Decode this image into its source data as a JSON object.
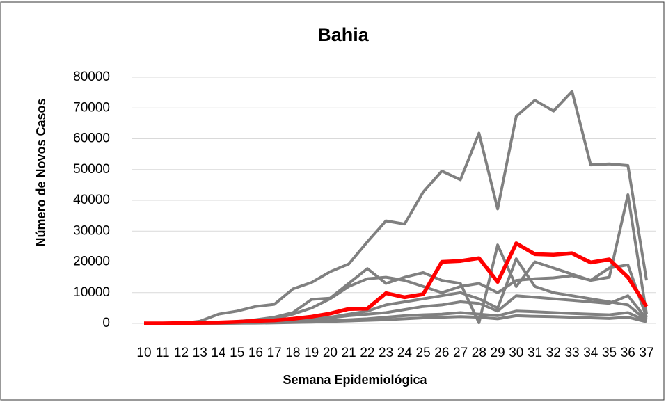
{
  "chart_data": {
    "type": "line",
    "title": "Bahia",
    "xlabel": "Semana Epidemiológica",
    "ylabel": "Número de Novos Casos",
    "categories": [
      "10",
      "11",
      "12",
      "13",
      "14",
      "15",
      "16",
      "17",
      "18",
      "19",
      "20",
      "21",
      "22",
      "23",
      "24",
      "25",
      "26",
      "27",
      "28",
      "29",
      "30",
      "31",
      "32",
      "33",
      "34",
      "35",
      "36",
      "37"
    ],
    "ylim": [
      0,
      80000
    ],
    "yticks": [
      0,
      10000,
      20000,
      30000,
      40000,
      50000,
      60000,
      70000,
      80000
    ],
    "grid": true,
    "series": [
      {
        "color": "#808080",
        "values": [
          0,
          0,
          0,
          700,
          3000,
          4000,
          5500,
          6200,
          11200,
          13300,
          16800,
          19300,
          26500,
          33300,
          32300,
          42700,
          49500,
          46700,
          61800,
          37200,
          67300,
          72500,
          69000,
          75400,
          51500,
          51800,
          51300,
          14000
        ]
      },
      {
        "color": "#808080",
        "values": [
          0,
          0,
          0,
          100,
          200,
          400,
          800,
          1500,
          3000,
          5000,
          8000,
          12000,
          14500,
          15000,
          14000,
          12000,
          10000,
          12000,
          13000,
          10000,
          14000,
          14500,
          14800,
          15500,
          14000,
          15000,
          41800,
          3000
        ]
      },
      {
        "color": "#808080",
        "values": [
          0,
          0,
          0,
          100,
          300,
          600,
          1200,
          2000,
          3500,
          7800,
          8200,
          13000,
          17800,
          13000,
          15000,
          16500,
          14000,
          13000,
          200,
          25500,
          12000,
          20000,
          18000,
          16000,
          14000,
          18000,
          19000,
          2000
        ]
      },
      {
        "color": "#808080",
        "values": [
          0,
          0,
          0,
          0,
          100,
          200,
          400,
          700,
          1200,
          1500,
          2000,
          3000,
          4000,
          6000,
          7000,
          8000,
          9000,
          10000,
          8000,
          5000,
          21000,
          12000,
          10000,
          9000,
          8000,
          7000,
          6000,
          1000
        ]
      },
      {
        "color": "#808080",
        "values": [
          0,
          0,
          0,
          0,
          100,
          200,
          300,
          500,
          800,
          1200,
          1800,
          2500,
          3000,
          3500,
          4500,
          5500,
          6000,
          7000,
          6500,
          4000,
          9000,
          8500,
          8000,
          7500,
          7000,
          6500,
          9000,
          1500
        ]
      },
      {
        "color": "#808080",
        "values": [
          0,
          0,
          0,
          0,
          0,
          100,
          200,
          300,
          500,
          700,
          900,
          1200,
          1500,
          2000,
          2500,
          2800,
          3000,
          3500,
          3000,
          2500,
          4000,
          3800,
          3500,
          3200,
          3000,
          2800,
          3500,
          800
        ]
      },
      {
        "color": "#808080",
        "values": [
          0,
          0,
          0,
          0,
          0,
          50,
          100,
          150,
          300,
          400,
          600,
          800,
          1000,
          1200,
          1500,
          1800,
          2000,
          2200,
          2000,
          1500,
          2500,
          2300,
          2200,
          2000,
          1800,
          1600,
          2000,
          500
        ]
      },
      {
        "color": "#ff0000",
        "values": [
          0,
          0,
          100,
          200,
          300,
          500,
          800,
          1000,
          1500,
          2200,
          3200,
          4700,
          4800,
          9800,
          8500,
          9500,
          20000,
          20300,
          21200,
          13500,
          26000,
          22500,
          22300,
          22800,
          19800,
          20800,
          15000,
          5500
        ]
      }
    ]
  }
}
